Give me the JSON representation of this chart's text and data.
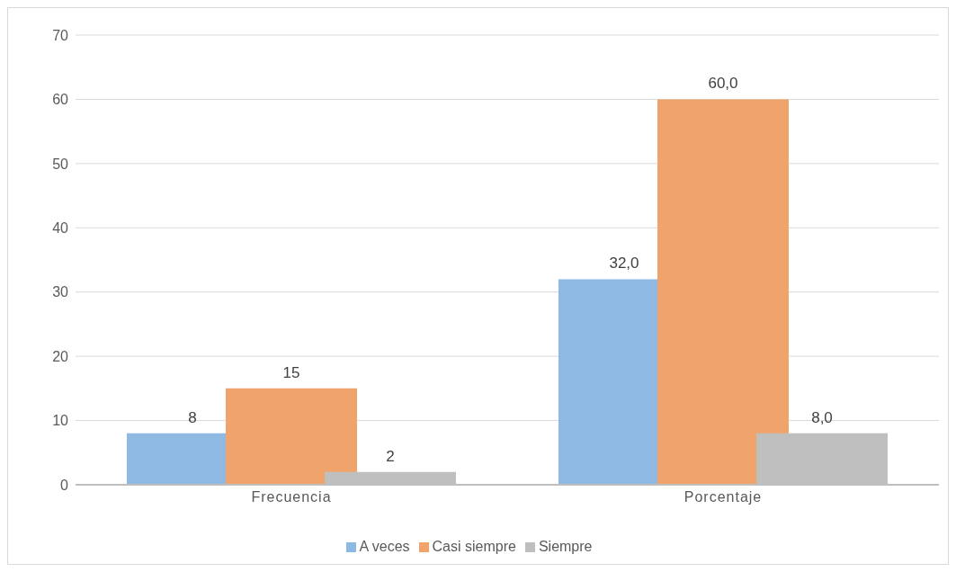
{
  "chart_data": {
    "type": "bar",
    "categories": [
      "Frecuencia",
      "Porcentaje"
    ],
    "series": [
      {
        "name": "A veces",
        "color": "#8db9e2",
        "values": [
          8,
          32.0
        ],
        "value_labels": [
          "8",
          "32,0"
        ]
      },
      {
        "name": "Casi siempre",
        "color": "#f0a46c",
        "values": [
          15,
          60.0
        ],
        "value_labels": [
          "15",
          "60,0"
        ]
      },
      {
        "name": "Siempre",
        "color": "#bfbfbf",
        "values": [
          2,
          8.0
        ],
        "value_labels": [
          "2",
          "8,0"
        ]
      }
    ],
    "ylim": [
      0,
      70
    ],
    "yticks": [
      0,
      10,
      20,
      30,
      40,
      50,
      60,
      70
    ],
    "grid": "y",
    "legend": "bottom"
  }
}
